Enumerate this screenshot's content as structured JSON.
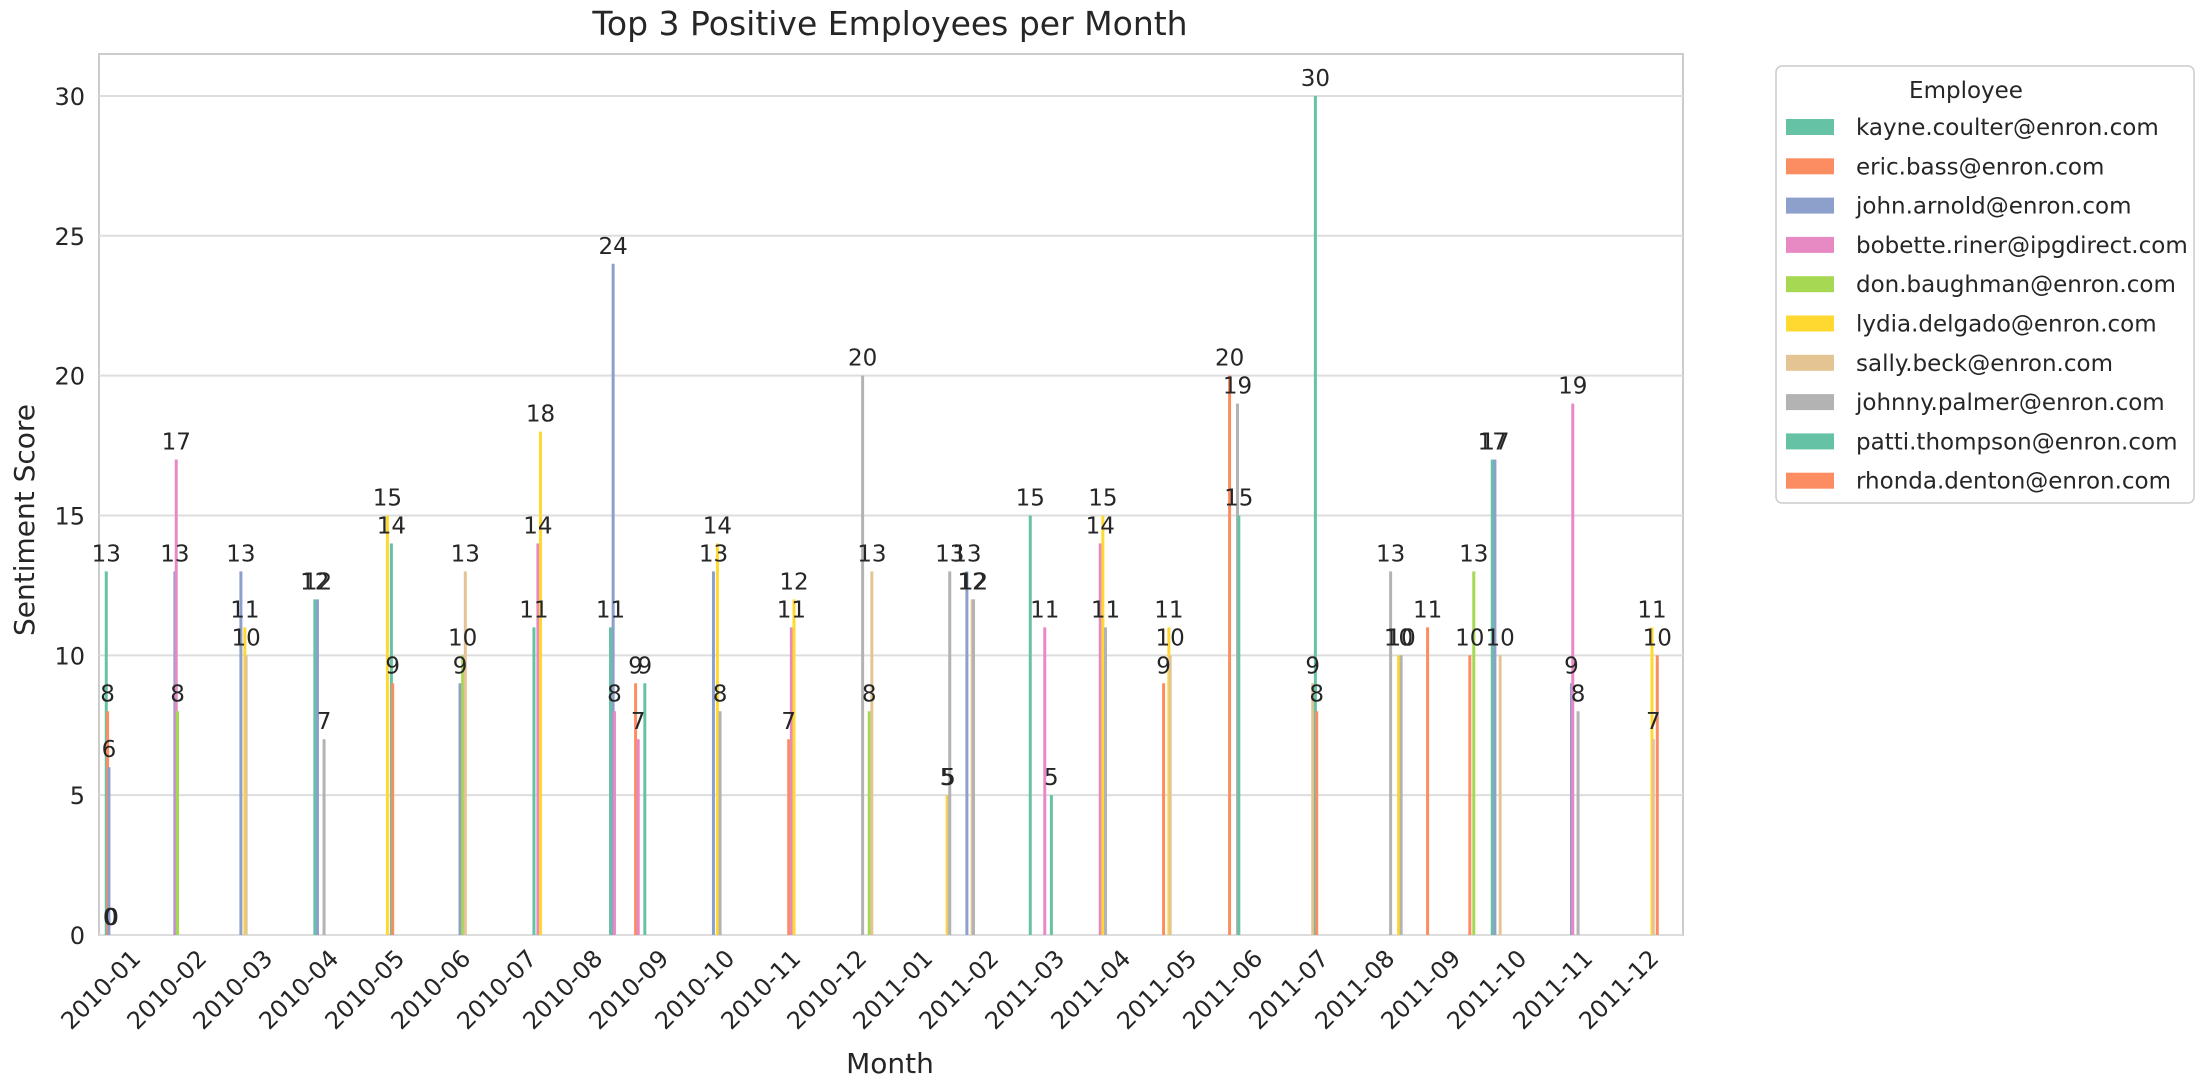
{
  "chart_data": {
    "type": "bar",
    "title": "Top 3 Positive Employees per Month",
    "xlabel": "Month",
    "ylabel": "Sentiment Score",
    "ylim": [
      0,
      31.5
    ],
    "yticks": [
      0,
      5,
      10,
      15,
      20,
      25,
      30
    ],
    "grid": true,
    "legend_title": "Employee",
    "legend_position": "outside-right",
    "categories": [
      "2010-01",
      "2010-02",
      "2010-03",
      "2010-04",
      "2010-05",
      "2010-06",
      "2010-07",
      "2010-08",
      "2010-09",
      "2010-10",
      "2010-11",
      "2010-12",
      "2011-01",
      "2011-02",
      "2011-03",
      "2011-04",
      "2011-05",
      "2011-06",
      "2011-07",
      "2011-08",
      "2011-09",
      "2011-10",
      "2011-11",
      "2011-12"
    ],
    "series": [
      {
        "name": "kayne.coulter@enron.com",
        "color": "#66c2a5"
      },
      {
        "name": "eric.bass@enron.com",
        "color": "#fc8d62"
      },
      {
        "name": "john.arnold@enron.com",
        "color": "#8da0cb"
      },
      {
        "name": "bobette.riner@ipgdirect.com",
        "color": "#e78ac3"
      },
      {
        "name": "don.baughman@enron.com",
        "color": "#a6d854"
      },
      {
        "name": "lydia.delgado@enron.com",
        "color": "#ffd92f"
      },
      {
        "name": "sally.beck@enron.com",
        "color": "#e5c494"
      },
      {
        "name": "johnny.palmer@enron.com",
        "color": "#b3b3b3"
      },
      {
        "name": "patti.thompson@enron.com",
        "color": "#66c2a5"
      },
      {
        "name": "rhonda.denton@enron.com",
        "color": "#fc8d62"
      },
      {
        "name": "",
        "color": "#8da0cb"
      },
      {
        "name": "",
        "color": "#e78ac3"
      },
      {
        "name": "",
        "color": "#a6d854"
      },
      {
        "name": "",
        "color": "#ffd92f"
      },
      {
        "name": "",
        "color": "#e5c494"
      },
      {
        "name": "",
        "color": "#b3b3b3"
      },
      {
        "name": "",
        "color": "#66c2a5"
      },
      {
        "name": "",
        "color": "#fc8d62"
      },
      {
        "name": "",
        "color": "#8da0cb"
      },
      {
        "name": "",
        "color": "#e78ac3"
      },
      {
        "name": "",
        "color": "#a6d854"
      },
      {
        "name": "",
        "color": "#ffd92f"
      },
      {
        "name": "",
        "color": "#e5c494"
      },
      {
        "name": "",
        "color": "#b3b3b3"
      },
      {
        "name": "",
        "color": "#66c2a5"
      },
      {
        "name": "",
        "color": "#fc8d62"
      },
      {
        "name": "",
        "color": "#8da0cb"
      },
      {
        "name": "",
        "color": "#e78ac3"
      },
      {
        "name": "",
        "color": "#a6d854"
      },
      {
        "name": "",
        "color": "#ffd92f"
      },
      {
        "name": "",
        "color": "#e5c494"
      },
      {
        "name": "",
        "color": "#b3b3b3"
      },
      {
        "name": "",
        "color": "#66c2a5"
      },
      {
        "name": "",
        "color": "#fc8d62"
      },
      {
        "name": "",
        "color": "#8da0cb"
      },
      {
        "name": "",
        "color": "#e78ac3"
      },
      {
        "name": "",
        "color": "#a6d854"
      },
      {
        "name": "",
        "color": "#ffd92f"
      },
      {
        "name": "",
        "color": "#e5c494"
      },
      {
        "name": "",
        "color": "#b3b3b3"
      }
    ],
    "bars": [
      {
        "month": "2010-01",
        "series": 0,
        "value": 13
      },
      {
        "month": "2010-01",
        "series": 1,
        "value": 8
      },
      {
        "month": "2010-01",
        "series": 2,
        "value": 6
      },
      {
        "month": "2010-01",
        "series": 3,
        "value": 0
      },
      {
        "month": "2010-01",
        "series": 4,
        "value": 0
      },
      {
        "month": "2010-02",
        "series": 2,
        "value": 13
      },
      {
        "month": "2010-02",
        "series": 3,
        "value": 17
      },
      {
        "month": "2010-02",
        "series": 4,
        "value": 8
      },
      {
        "month": "2010-03",
        "series": 2,
        "value": 13
      },
      {
        "month": "2010-03",
        "series": 5,
        "value": 11
      },
      {
        "month": "2010-03",
        "series": 6,
        "value": 10
      },
      {
        "month": "2010-04",
        "series": 8,
        "value": 12
      },
      {
        "month": "2010-04",
        "series": 10,
        "value": 12
      },
      {
        "month": "2010-04",
        "series": 15,
        "value": 7
      },
      {
        "month": "2010-05",
        "series": 13,
        "value": 15
      },
      {
        "month": "2010-05",
        "series": 16,
        "value": 14
      },
      {
        "month": "2010-05",
        "series": 17,
        "value": 9
      },
      {
        "month": "2010-06",
        "series": 18,
        "value": 9
      },
      {
        "month": "2010-06",
        "series": 20,
        "value": 10
      },
      {
        "month": "2010-06",
        "series": 22,
        "value": 13
      },
      {
        "month": "2010-07",
        "series": 24,
        "value": 11
      },
      {
        "month": "2010-07",
        "series": 27,
        "value": 14
      },
      {
        "month": "2010-07",
        "series": 29,
        "value": 18
      },
      {
        "month": "2010-08",
        "series": 32,
        "value": 11
      },
      {
        "month": "2010-08",
        "series": 34,
        "value": 24
      },
      {
        "month": "2010-08",
        "series": 35,
        "value": 8
      },
      {
        "month": "2010-09",
        "series": 1,
        "value": 9
      },
      {
        "month": "2010-09",
        "series": 3,
        "value": 7
      },
      {
        "month": "2010-09",
        "series": 8,
        "value": 9
      },
      {
        "month": "2010-10",
        "series": 10,
        "value": 13
      },
      {
        "month": "2010-10",
        "series": 13,
        "value": 14
      },
      {
        "month": "2010-10",
        "series": 15,
        "value": 8
      },
      {
        "month": "2010-11",
        "series": 17,
        "value": 7
      },
      {
        "month": "2010-11",
        "series": 19,
        "value": 11
      },
      {
        "month": "2010-11",
        "series": 21,
        "value": 12
      },
      {
        "month": "2010-12",
        "series": 23,
        "value": 20
      },
      {
        "month": "2010-12",
        "series": 28,
        "value": 8
      },
      {
        "month": "2010-12",
        "series": 30,
        "value": 13
      },
      {
        "month": "2011-01",
        "series": 37,
        "value": 5
      },
      {
        "month": "2011-01",
        "series": 38,
        "value": 5
      },
      {
        "month": "2011-01",
        "series": 39,
        "value": 13
      },
      {
        "month": "2011-02",
        "series": 2,
        "value": 13
      },
      {
        "month": "2011-02",
        "series": 6,
        "value": 12
      },
      {
        "month": "2011-02",
        "series": 7,
        "value": 12
      },
      {
        "month": "2011-03",
        "series": 11,
        "value": 11
      },
      {
        "month": "2011-03",
        "series": 16,
        "value": 5
      },
      {
        "month": "2011-03",
        "series": 0,
        "value": 15
      },
      {
        "month": "2011-04",
        "series": 3,
        "value": 14
      },
      {
        "month": "2011-04",
        "series": 5,
        "value": 15
      },
      {
        "month": "2011-04",
        "series": 7,
        "value": 11
      },
      {
        "month": "2011-05",
        "series": 1,
        "value": 9
      },
      {
        "month": "2011-05",
        "series": 5,
        "value": 11
      },
      {
        "month": "2011-05",
        "series": 6,
        "value": 10
      },
      {
        "month": "2011-06",
        "series": 1,
        "value": 20
      },
      {
        "month": "2011-06",
        "series": 7,
        "value": 19
      },
      {
        "month": "2011-06",
        "series": 8,
        "value": 15
      },
      {
        "month": "2011-07",
        "series": 14,
        "value": 9
      },
      {
        "month": "2011-07",
        "series": 16,
        "value": 30
      },
      {
        "month": "2011-07",
        "series": 17,
        "value": 8
      },
      {
        "month": "2011-08",
        "series": 23,
        "value": 13
      },
      {
        "month": "2011-08",
        "series": 29,
        "value": 10
      },
      {
        "month": "2011-08",
        "series": 31,
        "value": 10
      },
      {
        "month": "2011-09",
        "series": 33,
        "value": 10
      },
      {
        "month": "2011-09",
        "series": 36,
        "value": 13
      },
      {
        "month": "2011-09",
        "series": 1,
        "value": 11
      },
      {
        "month": "2011-10",
        "series": 0,
        "value": 17
      },
      {
        "month": "2011-10",
        "series": 2,
        "value": 17
      },
      {
        "month": "2011-10",
        "series": 6,
        "value": 10
      },
      {
        "month": "2011-11",
        "series": 10,
        "value": 9
      },
      {
        "month": "2011-11",
        "series": 11,
        "value": 19
      },
      {
        "month": "2011-11",
        "series": 15,
        "value": 8
      },
      {
        "month": "2011-12",
        "series": 21,
        "value": 11
      },
      {
        "month": "2011-12",
        "series": 22,
        "value": 7
      },
      {
        "month": "2011-12",
        "series": 25,
        "value": 10
      }
    ]
  }
}
